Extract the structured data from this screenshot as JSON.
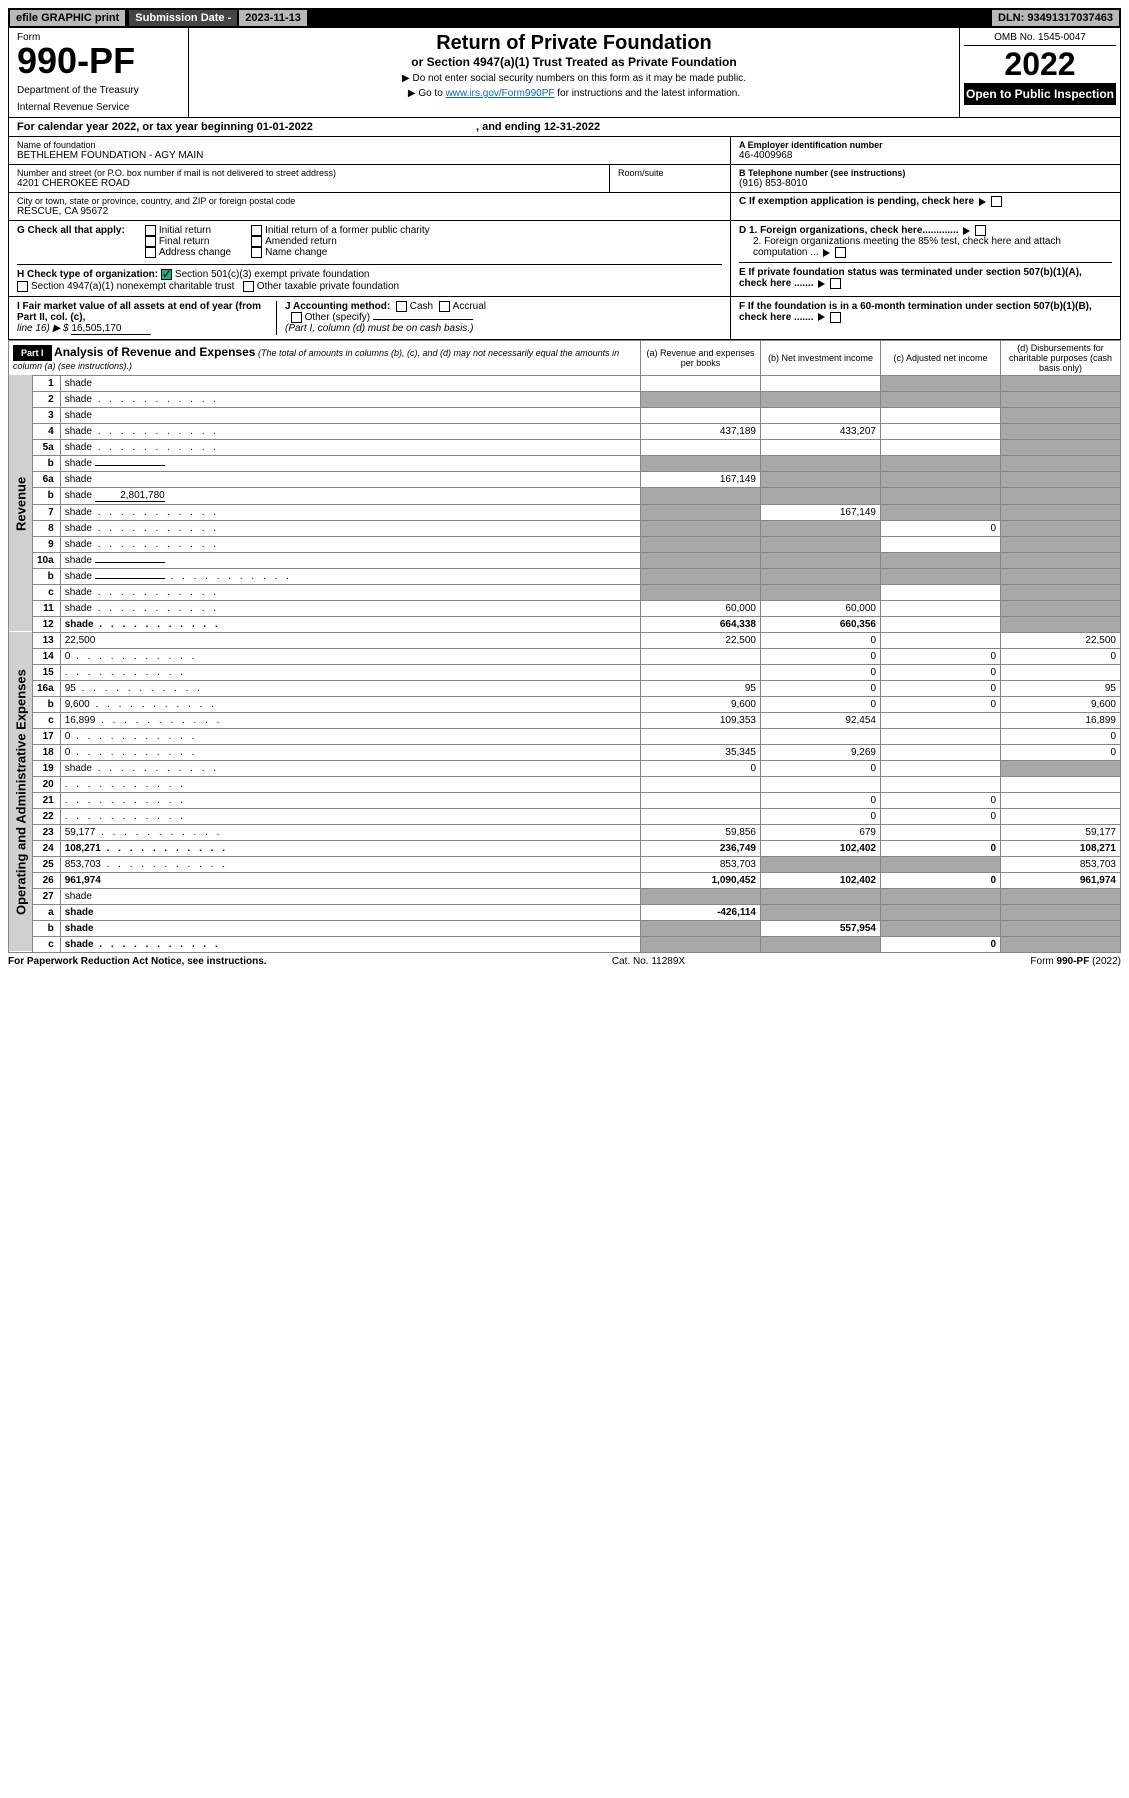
{
  "top": {
    "efile": "efile GRAPHIC print",
    "sub_label": "Submission Date - ",
    "sub_date": "2023-11-13",
    "dln": "DLN: 93491317037463"
  },
  "header": {
    "form_word": "Form",
    "form_num": "990-PF",
    "dept1": "Department of the Treasury",
    "dept2": "Internal Revenue Service",
    "title": "Return of Private Foundation",
    "subtitle": "or Section 4947(a)(1) Trust Treated as Private Foundation",
    "instr1": "▶ Do not enter social security numbers on this form as it may be made public.",
    "instr2_pre": "▶ Go to ",
    "instr2_link": "www.irs.gov/Form990PF",
    "instr2_post": " for instructions and the latest information.",
    "omb": "OMB No. 1545-0047",
    "year": "2022",
    "open": "Open to Public Inspection"
  },
  "cal": {
    "text": "For calendar year 2022, or tax year beginning 01-01-2022",
    "ending": ", and ending 12-31-2022"
  },
  "info": {
    "name_lbl": "Name of foundation",
    "name": "BETHLEHEM FOUNDATION - AGY MAIN",
    "addr_lbl": "Number and street (or P.O. box number if mail is not delivered to street address)",
    "addr": "4201 CHEROKEE ROAD",
    "room_lbl": "Room/suite",
    "city_lbl": "City or town, state or province, country, and ZIP or foreign postal code",
    "city": "RESCUE, CA  95672",
    "ein_lbl": "A Employer identification number",
    "ein": "46-4009968",
    "tel_lbl": "B Telephone number (see instructions)",
    "tel": "(916) 853-8010",
    "c_lbl": "C If exemption application is pending, check here",
    "d1": "D 1. Foreign organizations, check here.............",
    "d2": "2. Foreign organizations meeting the 85% test, check here and attach computation ...",
    "e": "E  If private foundation status was terminated under section 507(b)(1)(A), check here .......",
    "f": "F  If the foundation is in a 60-month termination under section 507(b)(1)(B), check here ......."
  },
  "g": {
    "label": "G Check all that apply:",
    "opts": [
      "Initial return",
      "Final return",
      "Address change",
      "Initial return of a former public charity",
      "Amended return",
      "Name change"
    ]
  },
  "h": {
    "label": "H Check type of organization:",
    "opt1": "Section 501(c)(3) exempt private foundation",
    "opt2": "Section 4947(a)(1) nonexempt charitable trust",
    "opt3": "Other taxable private foundation"
  },
  "i": {
    "label": "I Fair market value of all assets at end of year (from Part II, col. (c),",
    "line": "line 16) ▶ $",
    "val": "16,505,170"
  },
  "j": {
    "label": "J Accounting method:",
    "cash": "Cash",
    "accrual": "Accrual",
    "other": "Other (specify)",
    "note": "(Part I, column (d) must be on cash basis.)"
  },
  "part1": {
    "label": "Part I",
    "title": "Analysis of Revenue and Expenses",
    "title_note": "(The total of amounts in columns (b), (c), and (d) may not necessarily equal the amounts in column (a) (see instructions).)",
    "cols": {
      "a": "(a)   Revenue and expenses per books",
      "b": "(b)   Net investment income",
      "c": "(c)   Adjusted net income",
      "d": "(d)   Disbursements for charitable purposes (cash basis only)"
    }
  },
  "revenue_label": "Revenue",
  "expenses_label": "Operating and Administrative Expenses",
  "rows": [
    {
      "n": "1",
      "d": "shade",
      "a": "",
      "b": "",
      "c": "shade"
    },
    {
      "n": "2",
      "d": "shade",
      "a": "shade",
      "b": "shade",
      "c": "shade",
      "dots": true
    },
    {
      "n": "3",
      "d": "shade",
      "a": "",
      "b": "",
      "c": ""
    },
    {
      "n": "4",
      "d": "shade",
      "a": "437,189",
      "b": "433,207",
      "c": "",
      "dots": true
    },
    {
      "n": "5a",
      "d": "shade",
      "a": "",
      "b": "",
      "c": "",
      "dots": true
    },
    {
      "n": "b",
      "d": "shade",
      "a": "shade",
      "b": "shade",
      "c": "shade",
      "inline": ""
    },
    {
      "n": "6a",
      "d": "shade",
      "a": "167,149",
      "b": "shade",
      "c": "shade"
    },
    {
      "n": "b",
      "d": "shade",
      "a": "shade",
      "b": "shade",
      "c": "shade",
      "inline": "2,801,780"
    },
    {
      "n": "7",
      "d": "shade",
      "a": "shade",
      "b": "167,149",
      "c": "shade",
      "dots": true
    },
    {
      "n": "8",
      "d": "shade",
      "a": "shade",
      "b": "shade",
      "c": "0",
      "dots": true
    },
    {
      "n": "9",
      "d": "shade",
      "a": "shade",
      "b": "shade",
      "c": "",
      "dots": true
    },
    {
      "n": "10a",
      "d": "shade",
      "a": "shade",
      "b": "shade",
      "c": "shade",
      "inline": ""
    },
    {
      "n": "b",
      "d": "shade",
      "a": "shade",
      "b": "shade",
      "c": "shade",
      "inline": "",
      "dots": true
    },
    {
      "n": "c",
      "d": "shade",
      "a": "shade",
      "b": "shade",
      "c": "",
      "dots": true
    },
    {
      "n": "11",
      "d": "shade",
      "a": "60,000",
      "b": "60,000",
      "c": "",
      "dots": true
    },
    {
      "n": "12",
      "d": "shade",
      "a": "664,338",
      "b": "660,356",
      "c": "",
      "bold": true,
      "dots": true
    }
  ],
  "exp_rows": [
    {
      "n": "13",
      "d": "22,500",
      "a": "22,500",
      "b": "0",
      "c": ""
    },
    {
      "n": "14",
      "d": "0",
      "a": "",
      "b": "0",
      "c": "0",
      "dots": true
    },
    {
      "n": "15",
      "d": "",
      "a": "",
      "b": "0",
      "c": "0",
      "dots": true
    },
    {
      "n": "16a",
      "d": "95",
      "a": "95",
      "b": "0",
      "c": "0",
      "dots": true
    },
    {
      "n": "b",
      "d": "9,600",
      "a": "9,600",
      "b": "0",
      "c": "0",
      "dots": true
    },
    {
      "n": "c",
      "d": "16,899",
      "a": "109,353",
      "b": "92,454",
      "c": "",
      "dots": true
    },
    {
      "n": "17",
      "d": "0",
      "a": "",
      "b": "",
      "c": "",
      "dots": true
    },
    {
      "n": "18",
      "d": "0",
      "a": "35,345",
      "b": "9,269",
      "c": "",
      "dots": true
    },
    {
      "n": "19",
      "d": "shade",
      "a": "0",
      "b": "0",
      "c": "",
      "dots": true
    },
    {
      "n": "20",
      "d": "",
      "a": "",
      "b": "",
      "c": "",
      "dots": true
    },
    {
      "n": "21",
      "d": "",
      "a": "",
      "b": "0",
      "c": "0",
      "dots": true
    },
    {
      "n": "22",
      "d": "",
      "a": "",
      "b": "0",
      "c": "0",
      "dots": true
    },
    {
      "n": "23",
      "d": "59,177",
      "a": "59,856",
      "b": "679",
      "c": "",
      "dots": true
    },
    {
      "n": "24",
      "d": "108,271",
      "a": "236,749",
      "b": "102,402",
      "c": "0",
      "bold": true,
      "dots": true
    },
    {
      "n": "25",
      "d": "853,703",
      "a": "853,703",
      "b": "shade",
      "c": "shade",
      "dots": true
    },
    {
      "n": "26",
      "d": "961,974",
      "a": "1,090,452",
      "b": "102,402",
      "c": "0",
      "bold": true
    },
    {
      "n": "27",
      "d": "shade",
      "a": "shade",
      "b": "shade",
      "c": "shade"
    },
    {
      "n": "a",
      "d": "shade",
      "a": "-426,114",
      "b": "shade",
      "c": "shade",
      "bold": true
    },
    {
      "n": "b",
      "d": "shade",
      "a": "shade",
      "b": "557,954",
      "c": "shade",
      "bold": true
    },
    {
      "n": "c",
      "d": "shade",
      "a": "shade",
      "b": "shade",
      "c": "0",
      "bold": true,
      "dots": true
    }
  ],
  "footer": {
    "left": "For Paperwork Reduction Act Notice, see instructions.",
    "mid": "Cat. No. 11289X",
    "right": "Form 990-PF (2022)"
  }
}
